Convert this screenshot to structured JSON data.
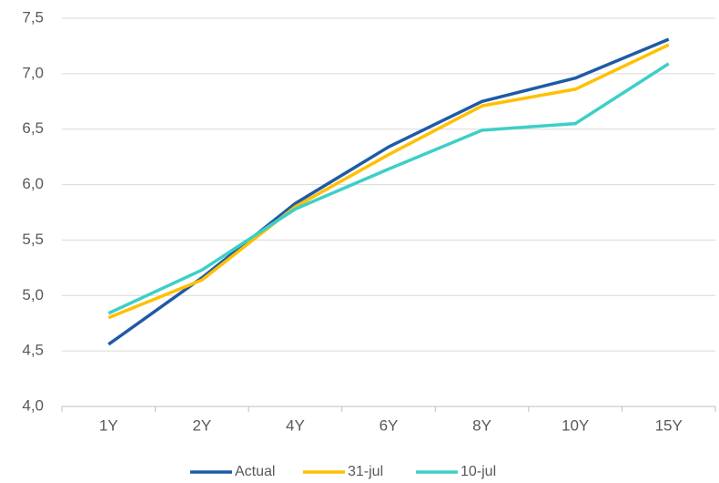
{
  "chart_data": {
    "type": "line",
    "categories": [
      "1Y",
      "2Y",
      "4Y",
      "6Y",
      "8Y",
      "10Y",
      "15Y"
    ],
    "series": [
      {
        "name": "Actual",
        "color": "#1f5aa6",
        "values": [
          4.56,
          5.16,
          5.83,
          6.34,
          6.75,
          6.96,
          7.31
        ]
      },
      {
        "name": "31-jul",
        "color": "#ffc000",
        "values": [
          4.8,
          5.14,
          5.8,
          6.27,
          6.71,
          6.86,
          7.26
        ]
      },
      {
        "name": "10-jul",
        "color": "#3ccfc8",
        "values": [
          4.84,
          5.23,
          5.78,
          6.14,
          6.49,
          6.55,
          7.09
        ]
      }
    ],
    "ylim": [
      4.0,
      7.5
    ],
    "yticks": [
      {
        "value": 4.0,
        "label": "4,0"
      },
      {
        "value": 4.5,
        "label": "4,5"
      },
      {
        "value": 5.0,
        "label": "5,0"
      },
      {
        "value": 5.5,
        "label": "5,5"
      },
      {
        "value": 6.0,
        "label": "6,0"
      },
      {
        "value": 6.5,
        "label": "6,5"
      },
      {
        "value": 7.0,
        "label": "7,0"
      },
      {
        "value": 7.5,
        "label": "7,5"
      }
    ],
    "grid": true,
    "legend": "bottom"
  }
}
